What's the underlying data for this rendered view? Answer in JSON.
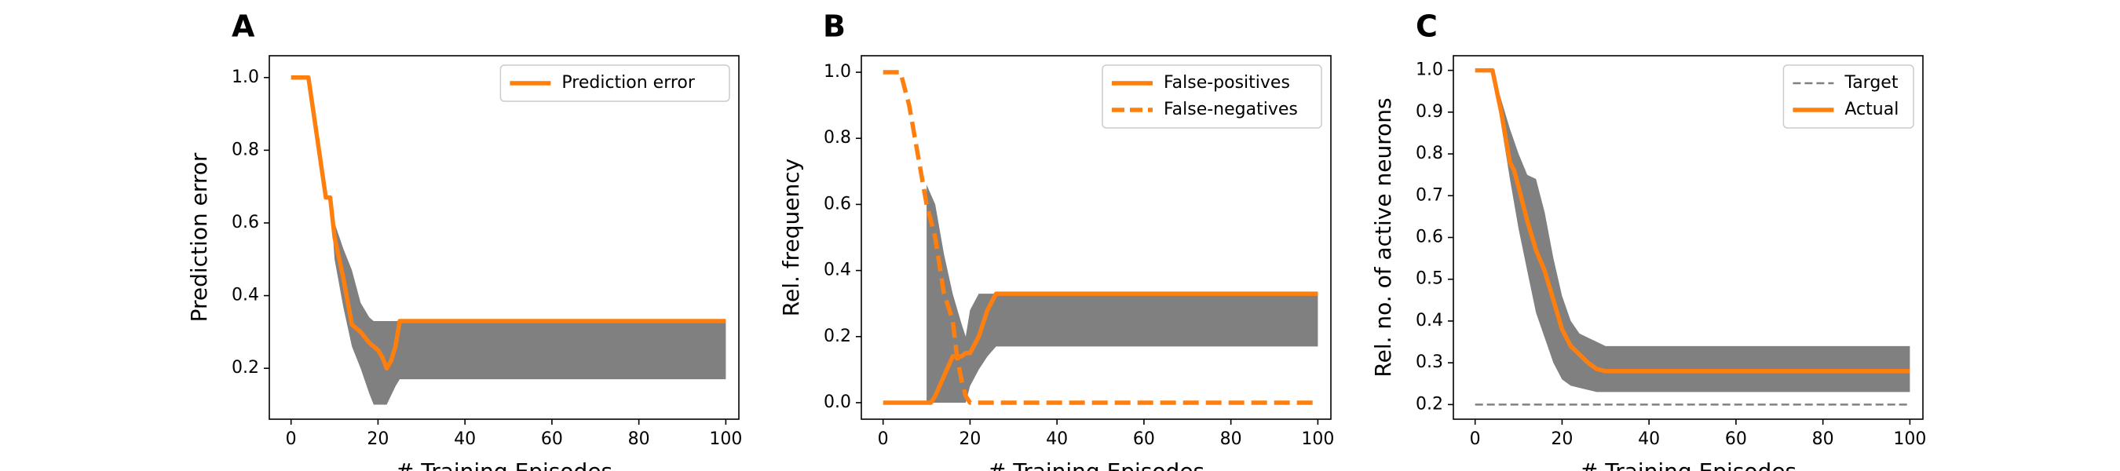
{
  "colors": {
    "orange": "#ff7f0e",
    "band": "#808080",
    "target": "#808080",
    "axis": "#000000"
  },
  "chart_data": [
    {
      "panel": "A",
      "type": "line",
      "xlabel": "# Training Episodes",
      "ylabel": "Prediction error",
      "xlim": [
        -5,
        103
      ],
      "ylim": [
        0.06,
        1.06
      ],
      "xticks": [
        0,
        20,
        40,
        60,
        80,
        100
      ],
      "yticks": [
        0.2,
        0.4,
        0.6,
        0.8,
        1.0
      ],
      "legend_position": "top-right",
      "series": [
        {
          "name": "Prediction error",
          "style": "solid",
          "x": [
            0,
            4,
            8,
            9,
            10,
            12,
            14,
            16,
            18,
            20,
            21,
            22,
            23,
            24,
            25,
            100
          ],
          "y": [
            1.0,
            1.0,
            0.67,
            0.67,
            0.56,
            0.45,
            0.32,
            0.3,
            0.27,
            0.25,
            0.23,
            0.2,
            0.22,
            0.26,
            0.33,
            0.33
          ]
        }
      ],
      "bands": [
        {
          "x": [
            9,
            10,
            12,
            14,
            16,
            18,
            19,
            20,
            22,
            24,
            25,
            100
          ],
          "upper": [
            0.67,
            0.6,
            0.53,
            0.47,
            0.38,
            0.34,
            0.33,
            0.33,
            0.33,
            0.33,
            0.33,
            0.33
          ],
          "lower": [
            0.67,
            0.5,
            0.37,
            0.26,
            0.2,
            0.13,
            0.1,
            0.1,
            0.1,
            0.15,
            0.17,
            0.17
          ]
        }
      ]
    },
    {
      "panel": "B",
      "type": "line",
      "xlabel": "# Training Episodes",
      "ylabel": "Rel. frequency",
      "xlim": [
        -5,
        103
      ],
      "ylim": [
        -0.05,
        1.05
      ],
      "xticks": [
        0,
        20,
        40,
        60,
        80,
        100
      ],
      "yticks": [
        0.0,
        0.2,
        0.4,
        0.6,
        0.8,
        1.0
      ],
      "legend_position": "top-right",
      "series": [
        {
          "name": "False-positives",
          "style": "solid",
          "x": [
            0,
            11,
            12,
            14,
            16,
            17,
            18,
            19,
            20,
            22,
            24,
            26,
            100
          ],
          "y": [
            0.0,
            0.0,
            0.02,
            0.08,
            0.14,
            0.14,
            0.14,
            0.15,
            0.15,
            0.2,
            0.28,
            0.33,
            0.33
          ]
        },
        {
          "name": "False-negatives",
          "style": "dashed",
          "x": [
            0,
            4,
            6,
            8,
            10,
            12,
            14,
            16,
            17,
            18,
            19,
            20,
            100
          ],
          "y": [
            1.0,
            1.0,
            0.9,
            0.75,
            0.6,
            0.5,
            0.33,
            0.25,
            0.14,
            0.07,
            0.02,
            0.0,
            0.0
          ]
        }
      ],
      "bands": [
        {
          "x": [
            10,
            12,
            14,
            16,
            18,
            19,
            20,
            22,
            24,
            26,
            100
          ],
          "upper": [
            0.66,
            0.6,
            0.45,
            0.33,
            0.24,
            0.2,
            0.28,
            0.33,
            0.33,
            0.33,
            0.33
          ],
          "lower": [
            0.0,
            0.0,
            0.0,
            0.0,
            0.0,
            0.0,
            0.05,
            0.1,
            0.14,
            0.17,
            0.17
          ]
        }
      ]
    },
    {
      "panel": "C",
      "type": "line",
      "xlabel": "# Training Episodes",
      "ylabel": "Rel. no. of active neurons",
      "xlim": [
        -5,
        103
      ],
      "ylim": [
        0.165,
        1.035
      ],
      "xticks": [
        0,
        20,
        40,
        60,
        80,
        100
      ],
      "yticks": [
        0.2,
        0.3,
        0.4,
        0.5,
        0.6,
        0.7,
        0.8,
        0.9,
        1.0
      ],
      "legend_position": "top-right",
      "series": [
        {
          "name": "Target",
          "style": "thin-dashed",
          "x": [
            0,
            100
          ],
          "y": [
            0.2,
            0.2
          ]
        },
        {
          "name": "Actual",
          "style": "solid",
          "x": [
            0,
            4,
            6,
            8,
            9,
            10,
            12,
            14,
            16,
            18,
            20,
            22,
            24,
            26,
            28,
            30,
            32,
            100
          ],
          "y": [
            1.0,
            1.0,
            0.9,
            0.78,
            0.76,
            0.72,
            0.64,
            0.57,
            0.52,
            0.45,
            0.38,
            0.34,
            0.32,
            0.3,
            0.285,
            0.28,
            0.28,
            0.28
          ]
        }
      ],
      "bands": [
        {
          "x": [
            4,
            6,
            8,
            10,
            12,
            14,
            16,
            18,
            20,
            22,
            24,
            26,
            28,
            30,
            32,
            100
          ],
          "upper": [
            1.0,
            0.93,
            0.86,
            0.8,
            0.75,
            0.74,
            0.66,
            0.55,
            0.46,
            0.4,
            0.37,
            0.36,
            0.35,
            0.34,
            0.34,
            0.34
          ],
          "lower": [
            1.0,
            0.87,
            0.74,
            0.62,
            0.52,
            0.42,
            0.36,
            0.3,
            0.26,
            0.245,
            0.24,
            0.235,
            0.23,
            0.23,
            0.23,
            0.23
          ]
        }
      ]
    }
  ]
}
